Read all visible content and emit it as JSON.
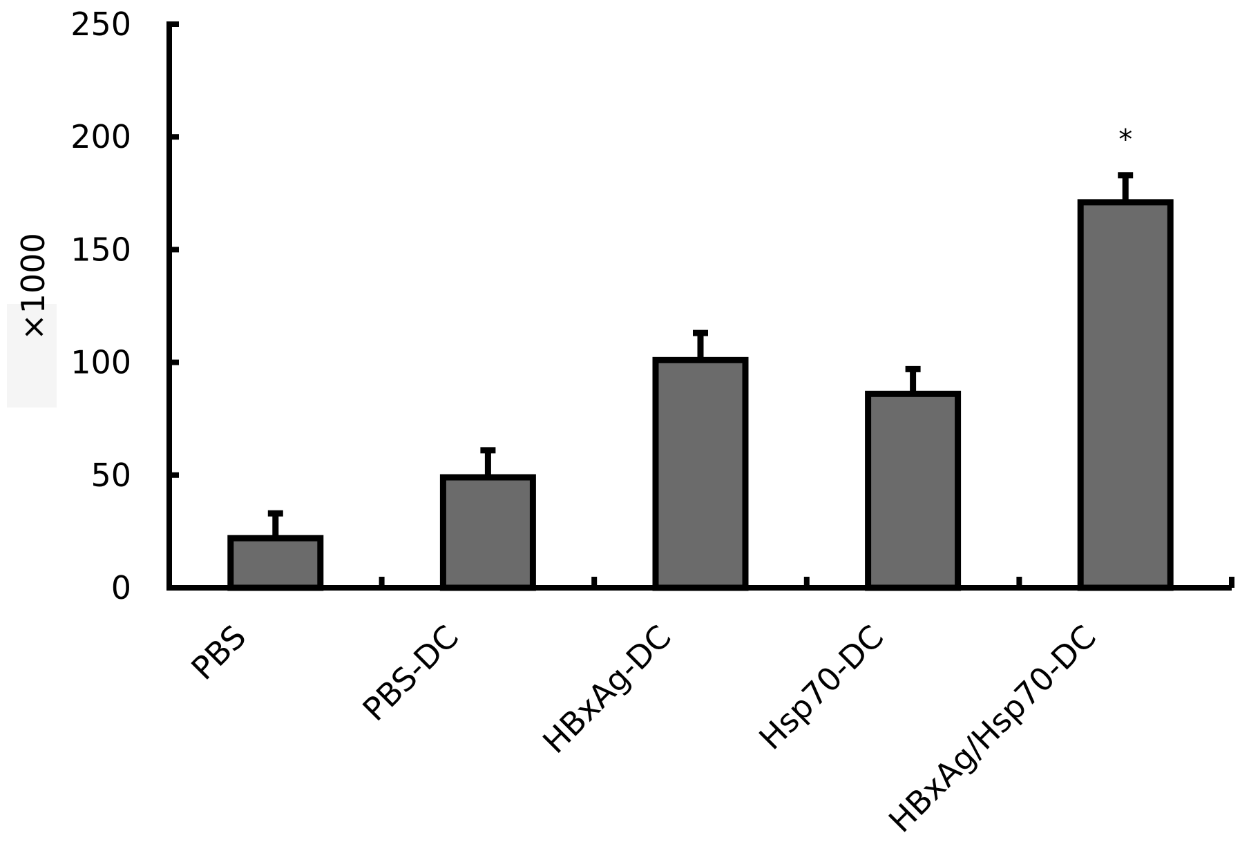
{
  "chart_data": {
    "type": "bar",
    "title": "",
    "xlabel": "",
    "ylabel": "×1000",
    "ylim": [
      0,
      250
    ],
    "yticks": [
      0,
      50,
      100,
      150,
      200,
      250
    ],
    "categories": [
      "PBS",
      "PBS-DC",
      "HBxAg-DC",
      "Hsp70-DC",
      "HBxAg/Hsp70-DC"
    ],
    "values": [
      22,
      49,
      101,
      86,
      171
    ],
    "errors": [
      11,
      12,
      12,
      11,
      12
    ],
    "annotations": [
      "",
      "",
      "",
      "",
      "*"
    ],
    "grid": false,
    "legend": "none",
    "colors": {
      "bar": "#6b6b6b",
      "outline": "#000000",
      "axis": "#000000"
    }
  }
}
